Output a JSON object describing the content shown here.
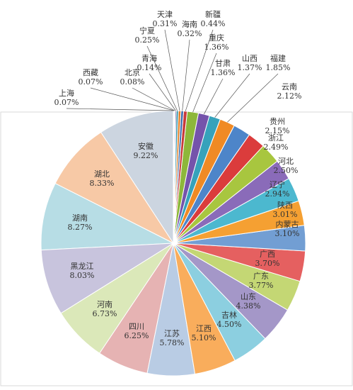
{
  "chart_data": {
    "type": "pie",
    "unit": "%",
    "title": "",
    "legend": "none",
    "categories": [
      "安徽",
      "湖北",
      "湖南",
      "黑龙江",
      "河南",
      "四川",
      "江苏",
      "江西",
      "吉林",
      "山东",
      "广东",
      "广西",
      "内蒙古",
      "陕西",
      "辽宁",
      "河北",
      "浙江",
      "贵州",
      "云南",
      "福建",
      "山西",
      "甘肃",
      "重庆",
      "新疆",
      "海南",
      "天津",
      "宁夏",
      "青海",
      "北京",
      "西藏",
      "上海"
    ],
    "values": [
      9.22,
      8.33,
      8.27,
      8.03,
      6.73,
      6.25,
      5.78,
      5.1,
      4.5,
      4.38,
      3.77,
      3.7,
      3.1,
      3.01,
      2.94,
      2.5,
      2.49,
      2.15,
      2.12,
      1.85,
      1.37,
      1.36,
      1.36,
      0.44,
      0.32,
      0.31,
      0.25,
      0.14,
      0.08,
      0.07,
      0.07
    ],
    "value_labels": [
      "9.22%",
      "8.33%",
      "8.27%",
      "8.03%",
      "6.73%",
      "6.25%",
      "5.78%",
      "5.10%",
      "4.50%",
      "4.38%",
      "3.77%",
      "3.70%",
      "3.10%",
      "3.01%",
      "2.94%",
      "2.50%",
      "2.49%",
      "2.15%",
      "2.12%",
      "1.85%",
      "1.37%",
      "1.36%",
      "1.36%",
      "0.44%",
      "0.32%",
      "0.31%",
      "0.25%",
      "0.14%",
      "0.08%",
      "0.07%",
      "0.07%"
    ],
    "colors": [
      "#ccd5e0",
      "#f7c9a6",
      "#b7dde5",
      "#c8c4dd",
      "#dbe8b9",
      "#e6b3b3",
      "#b9cce4",
      "#f9ad5c",
      "#8ccfe0",
      "#a497c8",
      "#c4d774",
      "#e56060",
      "#729ed3",
      "#f5a032",
      "#4cb8cf",
      "#8a6bb9",
      "#a8c63f",
      "#db3c3c",
      "#4d85c9",
      "#f08a24",
      "#36a2bb",
      "#7553ab",
      "#8db73a",
      "#c83a3a",
      "#3e6fb0",
      "#e67e22",
      "#2f93ab",
      "#5e3f95",
      "#75a02c",
      "#b23030",
      "#35639f"
    ]
  }
}
